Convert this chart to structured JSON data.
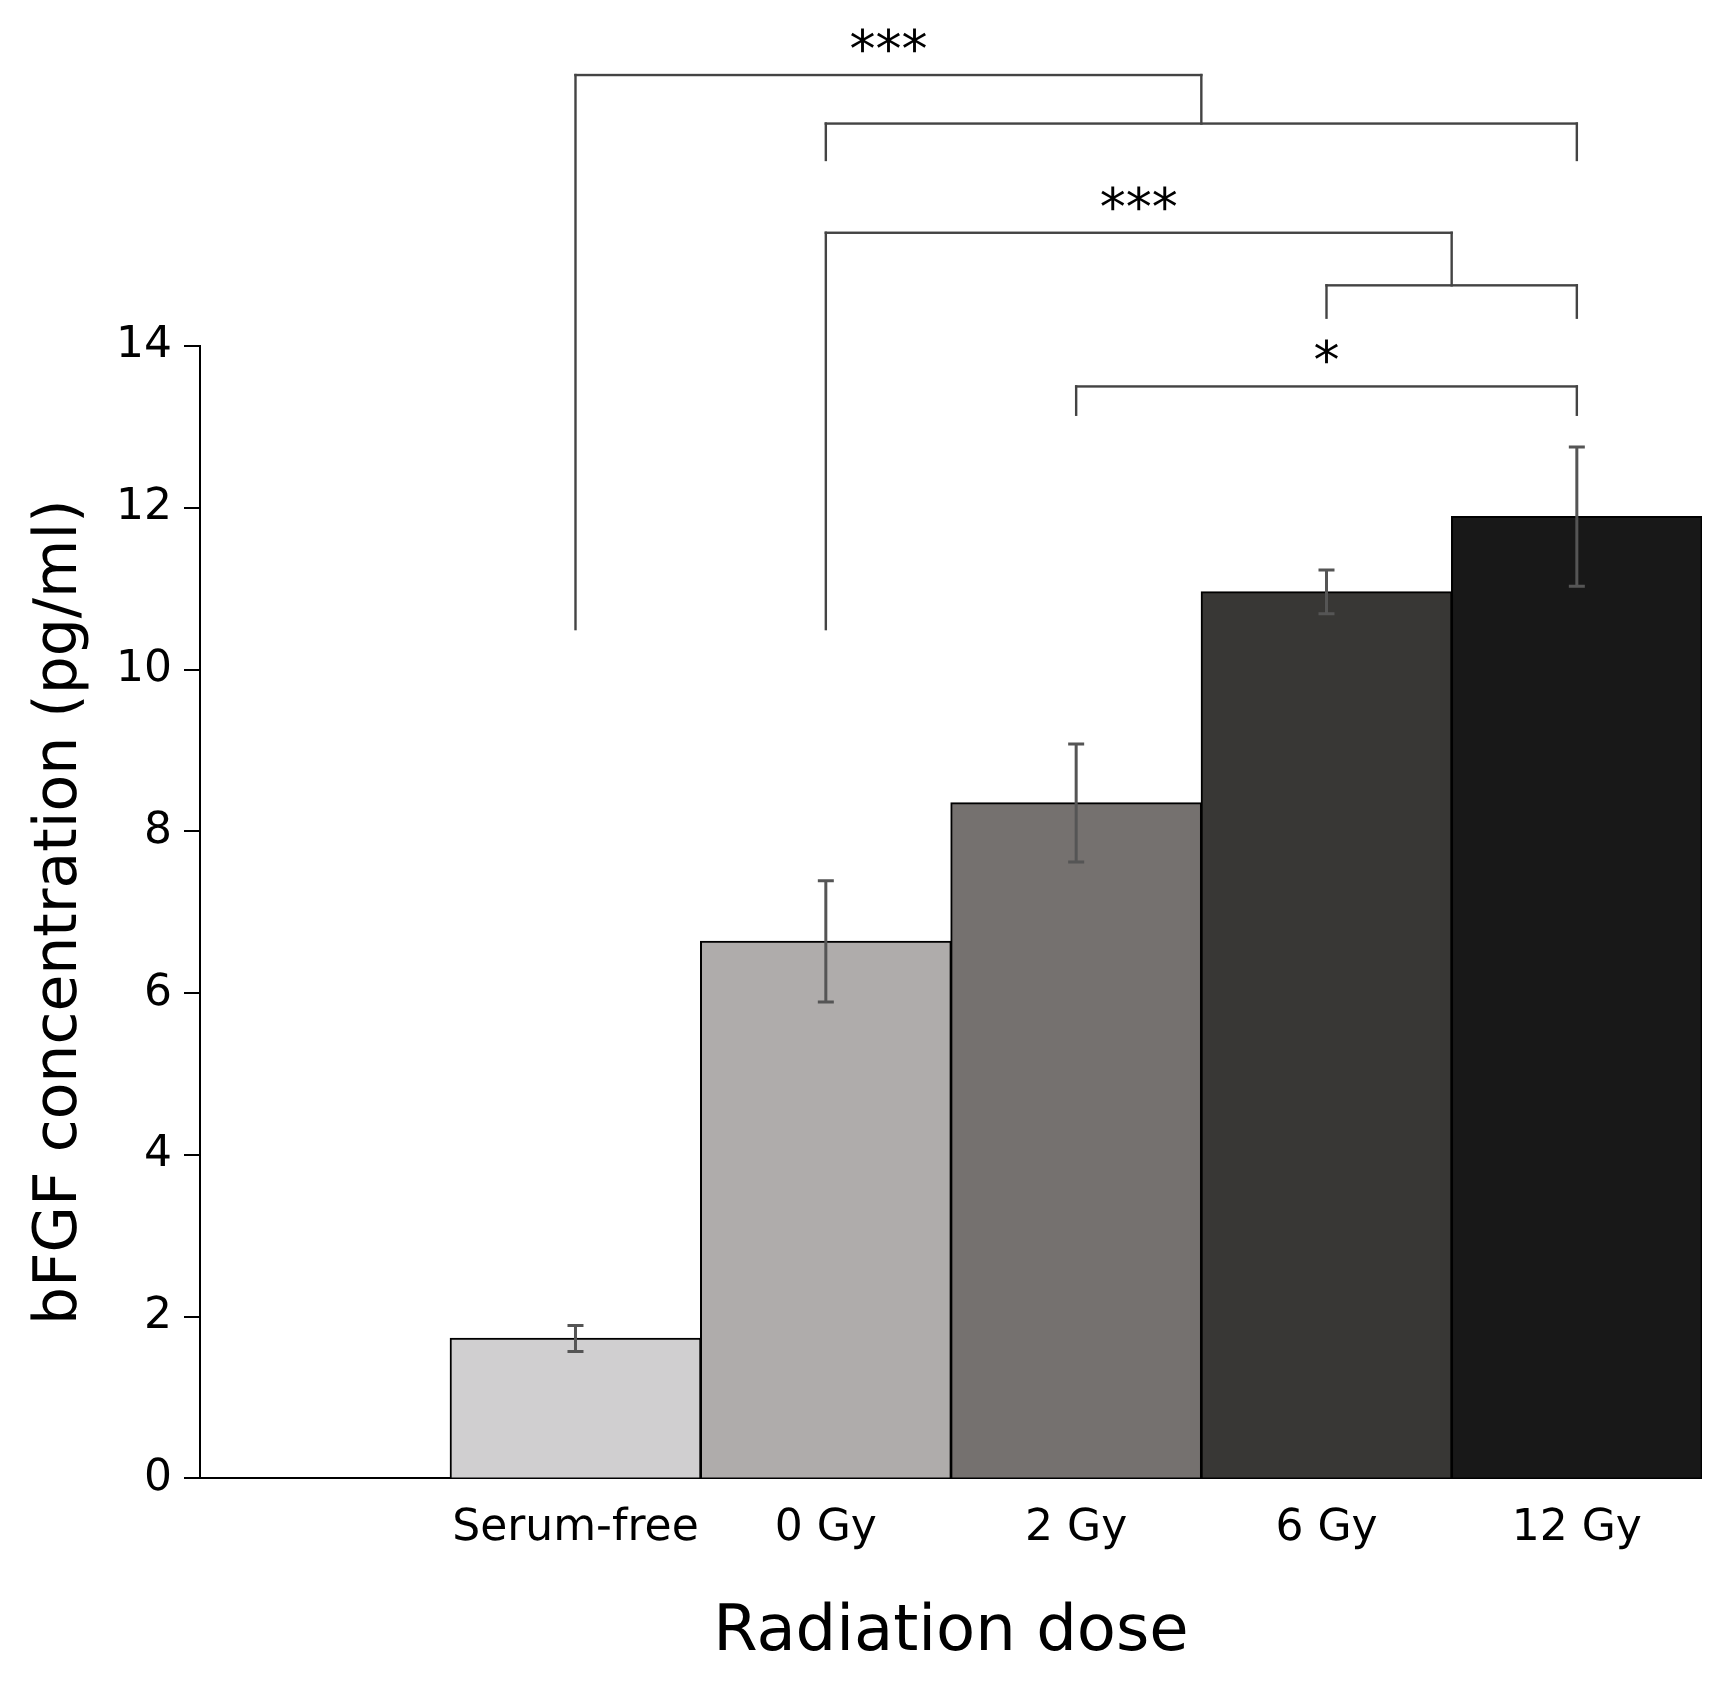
{
  "chart_data": {
    "type": "bar",
    "categories": [
      null,
      "Serum-free",
      "0 Gy",
      "2 Gy",
      "6 Gy",
      "12 Gy"
    ],
    "values": [
      null,
      1.73,
      6.64,
      8.35,
      10.96,
      11.89
    ],
    "colors": [
      "#ffffff",
      "#d0cfd0",
      "#afacab",
      "#75716f",
      "#383735",
      "#181818"
    ],
    "errors": [
      null,
      0.16,
      0.75,
      0.73,
      0.27,
      0.86
    ],
    "xlabel": "Radiation dose",
    "ylabel": "bFGF concentration (pg/ml)",
    "ylim": [
      0,
      14
    ],
    "yticks": [
      0,
      2,
      4,
      6,
      8,
      10,
      12,
      14
    ],
    "annotations": [
      "***",
      "***",
      "*"
    ],
    "grid": false,
    "legend": false
  }
}
